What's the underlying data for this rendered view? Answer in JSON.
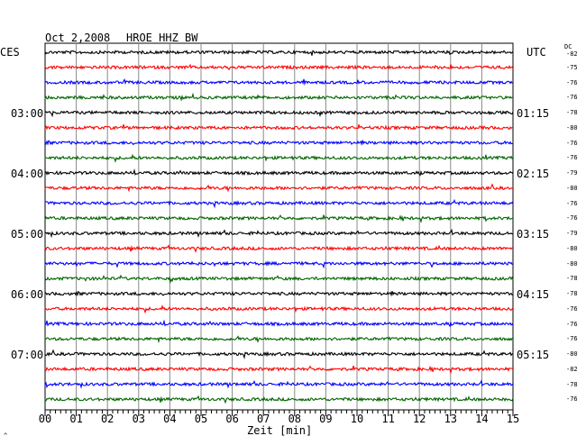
{
  "header": {
    "date": "Oct 2,2008",
    "station": "HROE HHZ BW",
    "left_timezone": "CES",
    "right_timezone": "UTC",
    "dc_label": "DC"
  },
  "chart_data": {
    "type": "line",
    "title": "Oct 2,2008   HROE HHZ BW",
    "xlabel": "Zeit [min]",
    "ylabel": "",
    "xlim": [
      0,
      15
    ],
    "x_ticks": [
      "00",
      "01",
      "02",
      "03",
      "04",
      "05",
      "06",
      "07",
      "08",
      "09",
      "10",
      "11",
      "12",
      "13",
      "14",
      "15"
    ],
    "grid": true,
    "trace_colors": [
      "#000000",
      "#ff0000",
      "#0000ff",
      "#006400"
    ],
    "left_hour_labels": [
      {
        "trace": 4,
        "text": "03:00"
      },
      {
        "trace": 8,
        "text": "04:00"
      },
      {
        "trace": 12,
        "text": "05:00"
      },
      {
        "trace": 16,
        "text": "06:00"
      },
      {
        "trace": 20,
        "text": "07:00"
      }
    ],
    "right_hour_labels": [
      {
        "trace": 4,
        "text": "01:15"
      },
      {
        "trace": 8,
        "text": "02:15"
      },
      {
        "trace": 12,
        "text": "03:15"
      },
      {
        "trace": 16,
        "text": "04:15"
      },
      {
        "trace": 20,
        "text": "05:15"
      }
    ],
    "dc_offsets": [
      -82,
      -75,
      -76,
      -76,
      -78,
      -80,
      -76,
      -76,
      -79,
      -80,
      -76,
      -76,
      -79,
      -80,
      -80,
      -78,
      -78,
      -76,
      -76,
      -76,
      -80,
      -82,
      -78,
      -76
    ]
  },
  "footer": {
    "mark": "^"
  }
}
